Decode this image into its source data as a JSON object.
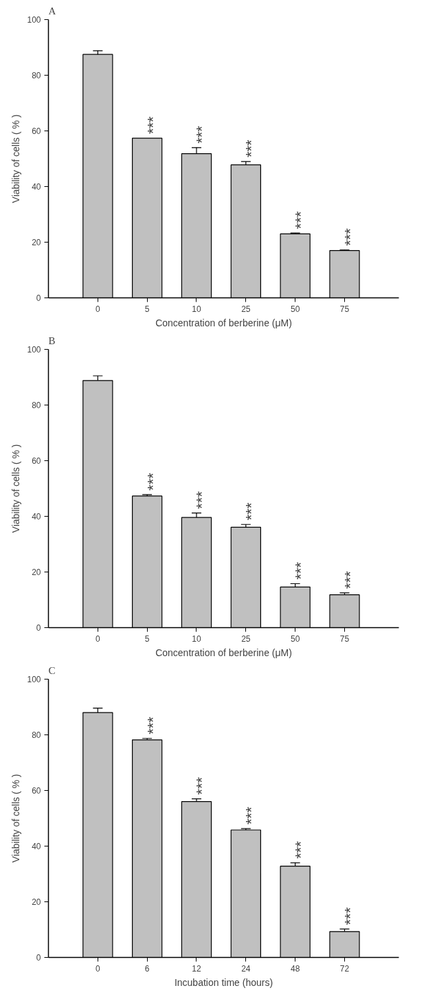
{
  "chart_data": [
    {
      "type": "bar",
      "title": "A",
      "xlabel": "Concentration of berberine (μM)",
      "ylabel": "Viability of cells ( % )",
      "categories": [
        "0",
        "5",
        "10",
        "25",
        "50",
        "75"
      ],
      "values": [
        87.5,
        57.4,
        51.8,
        47.8,
        23.0,
        17.0
      ],
      "errors": [
        1.3,
        null,
        2.2,
        1.2,
        0.3,
        0.2
      ],
      "color": "#c0c0c0",
      "ylim": [
        0,
        100
      ],
      "yticks": [
        0,
        20,
        40,
        60,
        80,
        100
      ],
      "grid": false,
      "annotations": [
        {
          "text": "***",
          "x": "5",
          "y": 57.4
        },
        {
          "text": "***",
          "x": "10",
          "y": 54.0
        },
        {
          "text": "***",
          "x": "25",
          "y": 49.0
        },
        {
          "text": "***",
          "x": "50",
          "y": 23.3
        },
        {
          "text": "***",
          "x": "75",
          "y": 17.2
        }
      ]
    },
    {
      "type": "bar",
      "title": "B",
      "xlabel": "Concentration of berberine (μM)",
      "ylabel": "Viability of cells ( % )",
      "categories": [
        "0",
        "5",
        "10",
        "25",
        "50",
        "75"
      ],
      "values": [
        88.8,
        47.3,
        39.6,
        36.1,
        14.6,
        11.8
      ],
      "errors": [
        1.7,
        0.5,
        1.6,
        1.0,
        1.2,
        0.7
      ],
      "color": "#c0c0c0",
      "ylim": [
        0,
        100
      ],
      "yticks": [
        0,
        20,
        40,
        60,
        80,
        100
      ],
      "grid": false,
      "annotations": [
        {
          "text": "***",
          "x": "5",
          "y": 47.8
        },
        {
          "text": "***",
          "x": "10",
          "y": 41.2
        },
        {
          "text": "***",
          "x": "25",
          "y": 37.1
        },
        {
          "text": "***",
          "x": "50",
          "y": 15.8
        },
        {
          "text": "***",
          "x": "75",
          "y": 12.5
        }
      ]
    },
    {
      "type": "bar",
      "title": "C",
      "xlabel": "Incubation time (hours)",
      "ylabel": "Viability of cells ( % )",
      "categories": [
        "0",
        "6",
        "12",
        "24",
        "48",
        "72"
      ],
      "values": [
        88.0,
        78.2,
        56.0,
        45.8,
        32.8,
        9.3
      ],
      "errors": [
        1.6,
        0.5,
        1.0,
        0.5,
        1.2,
        0.9
      ],
      "color": "#c0c0c0",
      "ylim": [
        0,
        100
      ],
      "yticks": [
        0,
        20,
        40,
        60,
        80,
        100
      ],
      "grid": false,
      "annotations": [
        {
          "text": "***",
          "x": "6",
          "y": 78.7
        },
        {
          "text": "***",
          "x": "12",
          "y": 57.0
        },
        {
          "text": "***",
          "x": "24",
          "y": 46.3
        },
        {
          "text": "***",
          "x": "48",
          "y": 34.0
        },
        {
          "text": "***",
          "x": "72",
          "y": 10.2
        }
      ]
    }
  ]
}
